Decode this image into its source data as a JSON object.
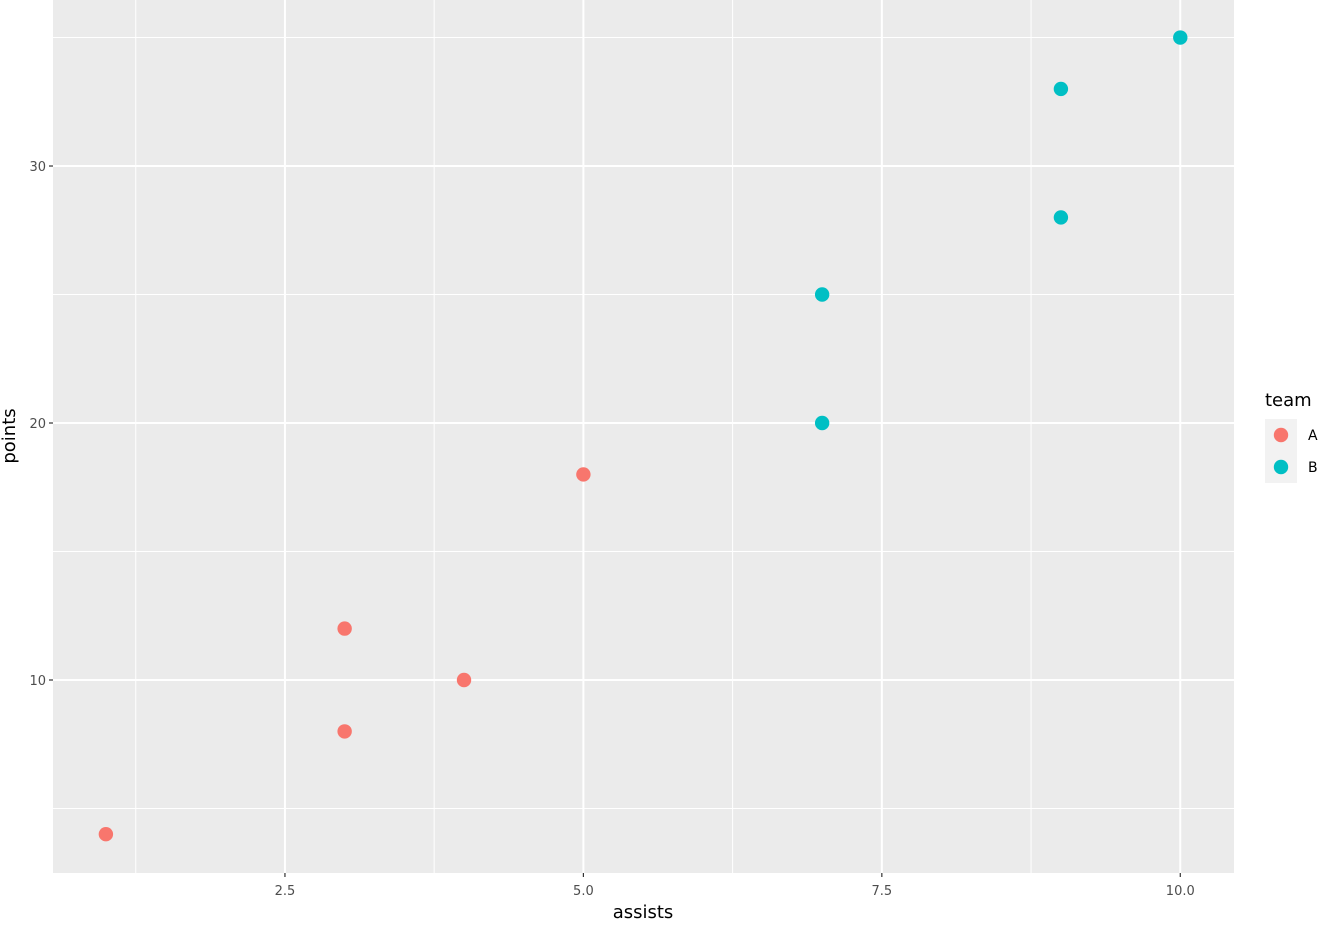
{
  "chart_data": {
    "type": "scatter",
    "title": "",
    "xlabel": "assists",
    "ylabel": "points",
    "xlim": [
      0.557,
      10.45
    ],
    "ylim": [
      2.49,
      36.46
    ],
    "grid": true,
    "x_ticks": [
      2.5,
      5.0,
      7.5,
      10.0
    ],
    "x_tick_labels": [
      "2.5",
      "5.0",
      "7.5",
      "10.0"
    ],
    "x_minor_ticks": [
      1.25,
      3.75,
      6.25,
      8.75
    ],
    "y_ticks": [
      10,
      20,
      30
    ],
    "y_tick_labels": [
      "10",
      "20",
      "30"
    ],
    "y_minor_ticks": [
      5,
      15,
      25,
      35
    ],
    "legend": {
      "title": "team",
      "position": "right",
      "entries": [
        {
          "label": "A",
          "color": "#F8766D"
        },
        {
          "label": "B",
          "color": "#00BFC4"
        }
      ]
    },
    "series": [
      {
        "name": "A",
        "color": "#F8766D",
        "points": [
          {
            "x": 1,
            "y": 4
          },
          {
            "x": 3,
            "y": 8
          },
          {
            "x": 3,
            "y": 12
          },
          {
            "x": 4,
            "y": 10
          },
          {
            "x": 5,
            "y": 18
          }
        ]
      },
      {
        "name": "B",
        "color": "#00BFC4",
        "points": [
          {
            "x": 7,
            "y": 20
          },
          {
            "x": 7,
            "y": 25
          },
          {
            "x": 9,
            "y": 28
          },
          {
            "x": 9,
            "y": 33
          },
          {
            "x": 10,
            "y": 35
          }
        ]
      }
    ]
  }
}
